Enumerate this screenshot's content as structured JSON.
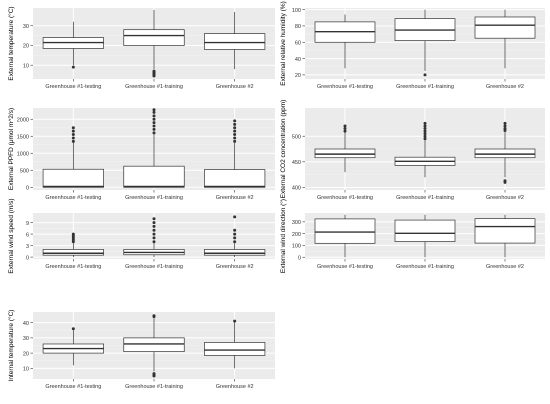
{
  "figure": {
    "background": "#ffffff",
    "panel_bg": "#ebebeb",
    "grid_major": "#ffffff",
    "grid_minor": "#f3f3f3",
    "box_fill": "#ffffff",
    "line_color": "#333333",
    "text_color": "#333333",
    "label_color": "#000000"
  },
  "chart_data": [
    {
      "type": "box",
      "ylabel": "External temperature (°C)",
      "categories": [
        "Greenhouse #1-testing",
        "Greenhouse #1-training",
        "Greenhouse #2"
      ],
      "ylim": [
        3,
        39
      ],
      "yticks": [
        10,
        20,
        30
      ],
      "boxes": [
        {
          "whisker_low": 10,
          "q1": 18.5,
          "median": 21.5,
          "q3": 24,
          "whisker_high": 32,
          "outliers": [
            9
          ]
        },
        {
          "whisker_low": 8,
          "q1": 20,
          "median": 25,
          "q3": 28,
          "whisker_high": 38,
          "outliers": [
            4.5,
            5,
            5.5,
            6,
            6.5,
            7
          ]
        },
        {
          "whisker_low": 8,
          "q1": 18,
          "median": 21.5,
          "q3": 26,
          "whisker_high": 37,
          "outliers": []
        }
      ]
    },
    {
      "type": "box",
      "ylabel": "External relative humidity (%)",
      "categories": [
        "Greenhouse #1-testing",
        "Greenhouse #1-training",
        "Greenhouse #2"
      ],
      "ylim": [
        15,
        102
      ],
      "yticks": [
        20,
        40,
        60,
        80,
        100
      ],
      "boxes": [
        {
          "whisker_low": 28,
          "q1": 60,
          "median": 73,
          "q3": 85,
          "whisker_high": 94,
          "outliers": []
        },
        {
          "whisker_low": 25,
          "q1": 62,
          "median": 75,
          "q3": 89,
          "whisker_high": 100,
          "outliers": [
            20
          ]
        },
        {
          "whisker_low": 28,
          "q1": 65,
          "median": 81,
          "q3": 91,
          "whisker_high": 100,
          "outliers": []
        }
      ]
    },
    {
      "type": "box",
      "ylabel": "External PPFD (μmol m^2/s)",
      "categories": [
        "Greenhouse #1-testing",
        "Greenhouse #1-training",
        "Greenhouse #2"
      ],
      "ylim": [
        -80,
        2330
      ],
      "yticks": [
        0,
        500,
        1000,
        1500,
        2000
      ],
      "boxes": [
        {
          "whisker_low": 0,
          "q1": 0,
          "median": 25,
          "q3": 530,
          "whisker_high": 1320,
          "outliers": [
            1350,
            1450,
            1550,
            1650,
            1750
          ]
        },
        {
          "whisker_low": 0,
          "q1": 0,
          "median": 25,
          "q3": 620,
          "whisker_high": 1560,
          "outliers": [
            1600,
            1700,
            1800,
            1900,
            2000,
            2100,
            2200,
            2280
          ]
        },
        {
          "whisker_low": 0,
          "q1": 0,
          "median": 25,
          "q3": 520,
          "whisker_high": 1300,
          "outliers": [
            1350,
            1450,
            1550,
            1650,
            1750,
            1850,
            1950
          ]
        }
      ]
    },
    {
      "type": "box",
      "ylabel": "External CO2 concentration (ppm)",
      "categories": [
        "Greenhouse #1-testing",
        "Greenhouse #1-training",
        "Greenhouse #2"
      ],
      "ylim": [
        395,
        555
      ],
      "yticks": [
        400,
        450,
        500
      ],
      "boxes": [
        {
          "whisker_low": 430,
          "q1": 458,
          "median": 465,
          "q3": 475,
          "whisker_high": 508,
          "outliers": [
            510,
            515,
            520
          ]
        },
        {
          "whisker_low": 420,
          "q1": 443,
          "median": 451,
          "q3": 459,
          "whisker_high": 492,
          "outliers": [
            495,
            500,
            505,
            510,
            515,
            520,
            525
          ]
        },
        {
          "whisker_low": 420,
          "q1": 458,
          "median": 465,
          "q3": 475,
          "whisker_high": 508,
          "outliers": [
            410,
            413,
            511,
            515,
            520,
            525
          ]
        }
      ]
    },
    {
      "type": "box",
      "ylabel": "External wind speed (m/s)",
      "categories": [
        "Greenhouse #1-testing",
        "Greenhouse #1-training",
        "Greenhouse #2"
      ],
      "ylim": [
        -0.5,
        11.5
      ],
      "yticks": [
        0,
        3,
        6,
        9
      ],
      "boxes": [
        {
          "whisker_low": 0,
          "q1": 0.5,
          "median": 1.0,
          "q3": 2.0,
          "whisker_high": 3.6,
          "outliers": [
            4,
            4.5,
            5,
            5.5,
            6
          ]
        },
        {
          "whisker_low": 0,
          "q1": 0.6,
          "median": 1.2,
          "q3": 2.0,
          "whisker_high": 3.6,
          "outliers": [
            4,
            5,
            6,
            7,
            8,
            9,
            10
          ]
        },
        {
          "whisker_low": 0,
          "q1": 0.5,
          "median": 1.0,
          "q3": 2.0,
          "whisker_high": 3.6,
          "outliers": [
            4,
            5,
            6,
            7,
            10.5
          ]
        }
      ]
    },
    {
      "type": "box",
      "ylabel": "External wind direction (°)",
      "categories": [
        "Greenhouse #1-testing",
        "Greenhouse #1-training",
        "Greenhouse #2"
      ],
      "ylim": [
        -15,
        375
      ],
      "yticks": [
        0,
        100,
        200,
        300
      ],
      "boxes": [
        {
          "whisker_low": 0,
          "q1": 118,
          "median": 213,
          "q3": 325,
          "whisker_high": 360,
          "outliers": []
        },
        {
          "whisker_low": 0,
          "q1": 133,
          "median": 203,
          "q3": 315,
          "whisker_high": 360,
          "outliers": []
        },
        {
          "whisker_low": 0,
          "q1": 120,
          "median": 260,
          "q3": 327,
          "whisker_high": 360,
          "outliers": []
        }
      ]
    },
    {
      "type": "box",
      "ylabel": "Internal temperature (°C)",
      "categories": [
        "Greenhouse #1-testing",
        "Greenhouse #1-training",
        "Greenhouse #2"
      ],
      "ylim": [
        3,
        47
      ],
      "yticks": [
        10,
        20,
        30,
        40
      ],
      "boxes": [
        {
          "whisker_low": 12,
          "q1": 20,
          "median": 23,
          "q3": 26,
          "whisker_high": 35,
          "outliers": [
            36
          ]
        },
        {
          "whisker_low": 8,
          "q1": 21,
          "median": 26,
          "q3": 30,
          "whisker_high": 43,
          "outliers": [
            5,
            5.5,
            6,
            6.5,
            44,
            44.5
          ]
        },
        {
          "whisker_low": 10,
          "q1": 18.5,
          "median": 22,
          "q3": 27,
          "whisker_high": 40,
          "outliers": [
            41
          ]
        }
      ]
    }
  ]
}
